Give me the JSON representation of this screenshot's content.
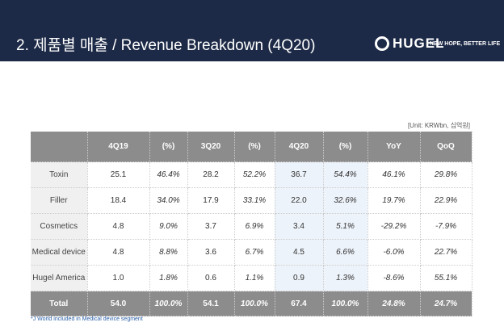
{
  "header": {
    "title": "2. 제품별 매출 / Revenue Breakdown (4Q20)",
    "logo": "HUGEL",
    "tagline": "NEW HOPE, BETTER LIFE"
  },
  "unit": "[Unit: KRWbn, 십억원]",
  "table": {
    "columns": [
      "4Q19",
      "(%)",
      "3Q20",
      "(%)",
      "4Q20",
      "(%)",
      "YoY",
      "QoQ"
    ],
    "rows": [
      [
        "Toxin",
        "25.1",
        "46.4%",
        "28.2",
        "52.2%",
        "36.7",
        "54.4%",
        "46.1%",
        "29.8%"
      ],
      [
        "Filler",
        "18.4",
        "34.0%",
        "17.9",
        "33.1%",
        "22.0",
        "32.6%",
        "19.7%",
        "22.9%"
      ],
      [
        "Cosmetics",
        "4.8",
        "9.0%",
        "3.7",
        "6.9%",
        "3.4",
        "5.1%",
        "-29.2%",
        "-7.9%"
      ],
      [
        "Medical device",
        "4.8",
        "8.8%",
        "3.6",
        "6.7%",
        "4.5",
        "6.6%",
        "-6.0%",
        "22.7%"
      ],
      [
        "Hugel America",
        "1.0",
        "1.8%",
        "0.6",
        "1.1%",
        "0.9",
        "1.3%",
        "-8.6%",
        "55.1%"
      ]
    ],
    "total": [
      "Total",
      "54.0",
      "100.0%",
      "54.1",
      "100.0%",
      "67.4",
      "100.0%",
      "24.8%",
      "24.7%"
    ]
  },
  "footnote": "*J World included in Medical device segment"
}
